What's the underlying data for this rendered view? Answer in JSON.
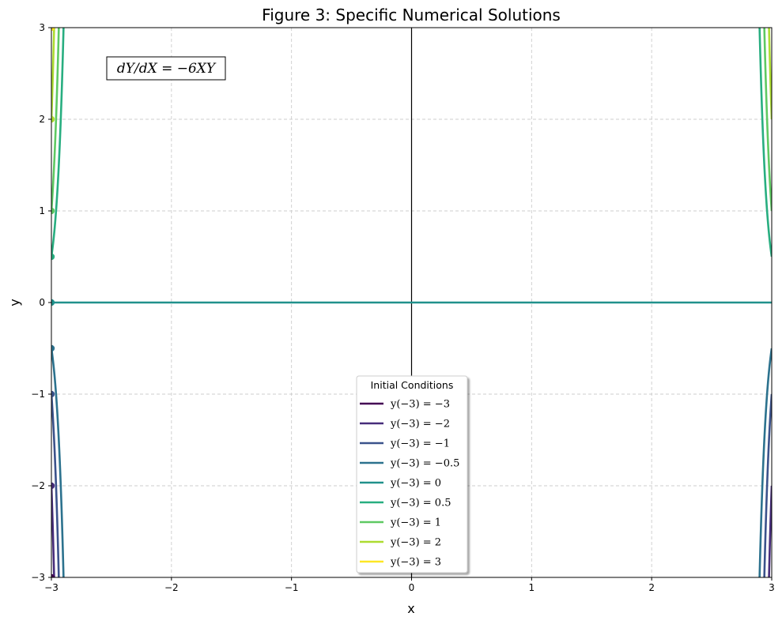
{
  "chart_data": {
    "type": "line",
    "title": "Figure 3: Specific Numerical Solutions",
    "xlabel": "x",
    "ylabel": "y",
    "xlim": [
      -3,
      3
    ],
    "ylim": [
      -3,
      3
    ],
    "xticks": [
      -3,
      -2,
      -1,
      0,
      1,
      2,
      3
    ],
    "yticks": [
      -3,
      -2,
      -1,
      0,
      1,
      2,
      3
    ],
    "grid": true,
    "annotation": "dY/dX = −6XY",
    "legend": {
      "title": "Initial Conditions",
      "placement": "lower-center"
    },
    "x0": -3,
    "series": [
      {
        "name": "y(−3) = −3",
        "y0": -3,
        "color": "#440154"
      },
      {
        "name": "y(−3) = −2",
        "y0": -2,
        "color": "#472d7b"
      },
      {
        "name": "y(−3) = −1",
        "y0": -1,
        "color": "#3b528b"
      },
      {
        "name": "y(−3) = −0.5",
        "y0": -0.5,
        "color": "#2c728e"
      },
      {
        "name": "y(−3) = 0",
        "y0": 0,
        "color": "#21918c"
      },
      {
        "name": "y(−3) = 0.5",
        "y0": 0.5,
        "color": "#28ae80"
      },
      {
        "name": "y(−3) = 1",
        "y0": 1,
        "color": "#5ec962"
      },
      {
        "name": "y(−3) = 2",
        "y0": 2,
        "color": "#addc30"
      },
      {
        "name": "y(−3) = 3",
        "y0": 3,
        "color": "#fde725"
      }
    ]
  }
}
